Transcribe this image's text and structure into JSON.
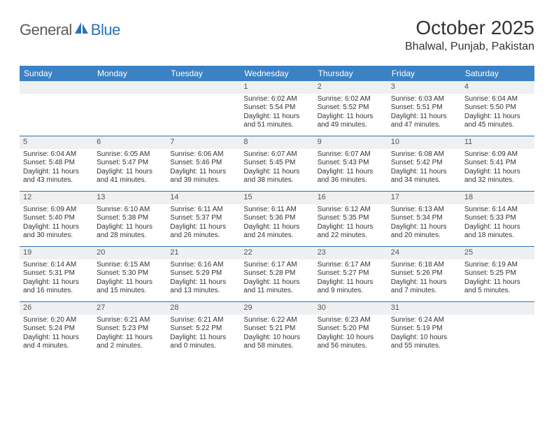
{
  "brand": {
    "part1": "General",
    "part2": "Blue"
  },
  "title": "October 2025",
  "location": "Bhalwal, Punjab, Pakistan",
  "colors": {
    "header_bg": "#3b82c4",
    "row_border": "#2a72b5",
    "daynum_bg": "#eef0f2",
    "text": "#333333",
    "logo_gray": "#5a5a5a",
    "logo_blue": "#2a72b5"
  },
  "weekdays": [
    "Sunday",
    "Monday",
    "Tuesday",
    "Wednesday",
    "Thursday",
    "Friday",
    "Saturday"
  ],
  "weeks": [
    [
      {
        "day": "",
        "lines": []
      },
      {
        "day": "",
        "lines": []
      },
      {
        "day": "",
        "lines": []
      },
      {
        "day": "1",
        "lines": [
          "Sunrise: 6:02 AM",
          "Sunset: 5:54 PM",
          "Daylight: 11 hours",
          "and 51 minutes."
        ]
      },
      {
        "day": "2",
        "lines": [
          "Sunrise: 6:02 AM",
          "Sunset: 5:52 PM",
          "Daylight: 11 hours",
          "and 49 minutes."
        ]
      },
      {
        "day": "3",
        "lines": [
          "Sunrise: 6:03 AM",
          "Sunset: 5:51 PM",
          "Daylight: 11 hours",
          "and 47 minutes."
        ]
      },
      {
        "day": "4",
        "lines": [
          "Sunrise: 6:04 AM",
          "Sunset: 5:50 PM",
          "Daylight: 11 hours",
          "and 45 minutes."
        ]
      }
    ],
    [
      {
        "day": "5",
        "lines": [
          "Sunrise: 6:04 AM",
          "Sunset: 5:48 PM",
          "Daylight: 11 hours",
          "and 43 minutes."
        ]
      },
      {
        "day": "6",
        "lines": [
          "Sunrise: 6:05 AM",
          "Sunset: 5:47 PM",
          "Daylight: 11 hours",
          "and 41 minutes."
        ]
      },
      {
        "day": "7",
        "lines": [
          "Sunrise: 6:06 AM",
          "Sunset: 5:46 PM",
          "Daylight: 11 hours",
          "and 39 minutes."
        ]
      },
      {
        "day": "8",
        "lines": [
          "Sunrise: 6:07 AM",
          "Sunset: 5:45 PM",
          "Daylight: 11 hours",
          "and 38 minutes."
        ]
      },
      {
        "day": "9",
        "lines": [
          "Sunrise: 6:07 AM",
          "Sunset: 5:43 PM",
          "Daylight: 11 hours",
          "and 36 minutes."
        ]
      },
      {
        "day": "10",
        "lines": [
          "Sunrise: 6:08 AM",
          "Sunset: 5:42 PM",
          "Daylight: 11 hours",
          "and 34 minutes."
        ]
      },
      {
        "day": "11",
        "lines": [
          "Sunrise: 6:09 AM",
          "Sunset: 5:41 PM",
          "Daylight: 11 hours",
          "and 32 minutes."
        ]
      }
    ],
    [
      {
        "day": "12",
        "lines": [
          "Sunrise: 6:09 AM",
          "Sunset: 5:40 PM",
          "Daylight: 11 hours",
          "and 30 minutes."
        ]
      },
      {
        "day": "13",
        "lines": [
          "Sunrise: 6:10 AM",
          "Sunset: 5:38 PM",
          "Daylight: 11 hours",
          "and 28 minutes."
        ]
      },
      {
        "day": "14",
        "lines": [
          "Sunrise: 6:11 AM",
          "Sunset: 5:37 PM",
          "Daylight: 11 hours",
          "and 26 minutes."
        ]
      },
      {
        "day": "15",
        "lines": [
          "Sunrise: 6:11 AM",
          "Sunset: 5:36 PM",
          "Daylight: 11 hours",
          "and 24 minutes."
        ]
      },
      {
        "day": "16",
        "lines": [
          "Sunrise: 6:12 AM",
          "Sunset: 5:35 PM",
          "Daylight: 11 hours",
          "and 22 minutes."
        ]
      },
      {
        "day": "17",
        "lines": [
          "Sunrise: 6:13 AM",
          "Sunset: 5:34 PM",
          "Daylight: 11 hours",
          "and 20 minutes."
        ]
      },
      {
        "day": "18",
        "lines": [
          "Sunrise: 6:14 AM",
          "Sunset: 5:33 PM",
          "Daylight: 11 hours",
          "and 18 minutes."
        ]
      }
    ],
    [
      {
        "day": "19",
        "lines": [
          "Sunrise: 6:14 AM",
          "Sunset: 5:31 PM",
          "Daylight: 11 hours",
          "and 16 minutes."
        ]
      },
      {
        "day": "20",
        "lines": [
          "Sunrise: 6:15 AM",
          "Sunset: 5:30 PM",
          "Daylight: 11 hours",
          "and 15 minutes."
        ]
      },
      {
        "day": "21",
        "lines": [
          "Sunrise: 6:16 AM",
          "Sunset: 5:29 PM",
          "Daylight: 11 hours",
          "and 13 minutes."
        ]
      },
      {
        "day": "22",
        "lines": [
          "Sunrise: 6:17 AM",
          "Sunset: 5:28 PM",
          "Daylight: 11 hours",
          "and 11 minutes."
        ]
      },
      {
        "day": "23",
        "lines": [
          "Sunrise: 6:17 AM",
          "Sunset: 5:27 PM",
          "Daylight: 11 hours",
          "and 9 minutes."
        ]
      },
      {
        "day": "24",
        "lines": [
          "Sunrise: 6:18 AM",
          "Sunset: 5:26 PM",
          "Daylight: 11 hours",
          "and 7 minutes."
        ]
      },
      {
        "day": "25",
        "lines": [
          "Sunrise: 6:19 AM",
          "Sunset: 5:25 PM",
          "Daylight: 11 hours",
          "and 5 minutes."
        ]
      }
    ],
    [
      {
        "day": "26",
        "lines": [
          "Sunrise: 6:20 AM",
          "Sunset: 5:24 PM",
          "Daylight: 11 hours",
          "and 4 minutes."
        ]
      },
      {
        "day": "27",
        "lines": [
          "Sunrise: 6:21 AM",
          "Sunset: 5:23 PM",
          "Daylight: 11 hours",
          "and 2 minutes."
        ]
      },
      {
        "day": "28",
        "lines": [
          "Sunrise: 6:21 AM",
          "Sunset: 5:22 PM",
          "Daylight: 11 hours",
          "and 0 minutes."
        ]
      },
      {
        "day": "29",
        "lines": [
          "Sunrise: 6:22 AM",
          "Sunset: 5:21 PM",
          "Daylight: 10 hours",
          "and 58 minutes."
        ]
      },
      {
        "day": "30",
        "lines": [
          "Sunrise: 6:23 AM",
          "Sunset: 5:20 PM",
          "Daylight: 10 hours",
          "and 56 minutes."
        ]
      },
      {
        "day": "31",
        "lines": [
          "Sunrise: 6:24 AM",
          "Sunset: 5:19 PM",
          "Daylight: 10 hours",
          "and 55 minutes."
        ]
      },
      {
        "day": "",
        "lines": []
      }
    ]
  ]
}
